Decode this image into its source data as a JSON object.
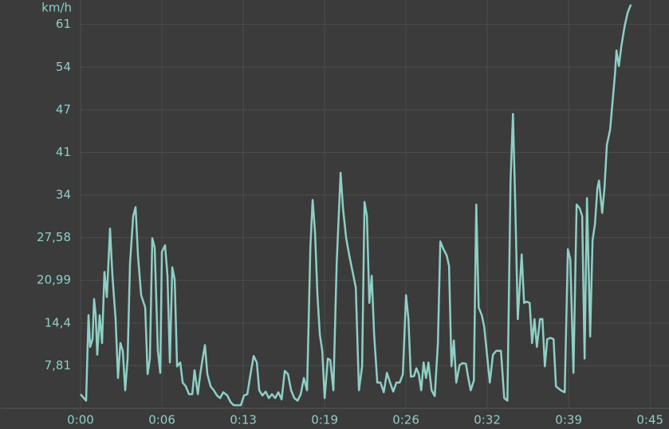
{
  "chart_data": {
    "type": "line",
    "y_unit": "km/h",
    "x": [
      0,
      0.44,
      0.63,
      0.76,
      0.95,
      1.07,
      1.2,
      1.32,
      1.51,
      1.7,
      1.89,
      2.08,
      2.33,
      2.52,
      2.77,
      2.96,
      3.15,
      3.34,
      3.53,
      3.72,
      3.91,
      4.16,
      4.35,
      4.54,
      4.79,
      5.11,
      5.3,
      5.48,
      5.67,
      5.86,
      6.11,
      6.3,
      6.43,
      6.68,
      6.87,
      7.06,
      7.25,
      7.44,
      7.63,
      7.88,
      8.07,
      8.32,
      8.57,
      8.83,
      9.01,
      9.27,
      9.46,
      9.65,
      9.83,
      10.02,
      10.28,
      10.53,
      10.78,
      11.03,
      11.28,
      11.6,
      11.85,
      12.1,
      12.36,
      12.67,
      12.92,
      13.18,
      13.43,
      13.68,
      13.93,
      14.12,
      14.37,
      14.63,
      14.88,
      15.13,
      15.38,
      15.63,
      15.89,
      16.14,
      16.39,
      16.64,
      16.89,
      17.15,
      17.4,
      17.65,
      17.9,
      18.16,
      18.34,
      18.53,
      18.72,
      18.91,
      19.1,
      19.29,
      19.54,
      19.73,
      19.98,
      20.24,
      20.55,
      20.74,
      20.99,
      21.24,
      21.5,
      21.75,
      22,
      22.25,
      22.44,
      22.63,
      22.82,
      23.01,
      23.2,
      23.45,
      23.7,
      23.96,
      24.21,
      24.46,
      24.71,
      24.96,
      25.22,
      25.47,
      25.72,
      25.91,
      26.1,
      26.35,
      26.54,
      26.73,
      26.92,
      27.11,
      27.3,
      27.49,
      27.74,
      27.99,
      28.24,
      28.43,
      28.68,
      28.94,
      29.12,
      29.31,
      29.5,
      29.69,
      29.95,
      30.2,
      30.45,
      30.64,
      30.83,
      31.08,
      31.27,
      31.46,
      31.71,
      31.9,
      32.09,
      32.34,
      32.59,
      32.85,
      33.22,
      33.48,
      33.73,
      33.98,
      34.17,
      34.36,
      34.55,
      34.74,
      34.86,
      35.05,
      35.24,
      35.49,
      35.68,
      35.87,
      36.06,
      36.31,
      36.5,
      36.69,
      36.88,
      37.13,
      37.38,
      37.57,
      37.95,
      38.26,
      38.51,
      38.7,
      38.95,
      39.2,
      39.45,
      39.64,
      39.83,
      40.02,
      40.27,
      40.46,
      40.65,
      40.84,
      40.97,
      41.22,
      41.4,
      41.59,
      41.85,
      42.04,
      42.23,
      42.35,
      42.54,
      42.73,
      42.99,
      43.24,
      43.49
    ],
    "series": [
      {
        "color": "#8ecfc5",
        "values": [
          3.4,
          2.4,
          15.6,
          10.7,
          11.9,
          18.1,
          15.6,
          9.5,
          15.6,
          11.3,
          22.3,
          18.4,
          29.0,
          21.7,
          15.0,
          5.9,
          11.3,
          10.1,
          4.0,
          8.9,
          23.6,
          30.9,
          32.3,
          24.8,
          18.7,
          16.8,
          6.5,
          8.9,
          27.5,
          26.0,
          10.1,
          6.7,
          25.4,
          26.4,
          21.7,
          8.3,
          23.0,
          21.1,
          7.7,
          8.3,
          5.2,
          4.6,
          3.4,
          3.4,
          7.1,
          3.4,
          6.5,
          8.9,
          11.0,
          6.5,
          4.6,
          4.0,
          3.2,
          2.8,
          3.7,
          3.2,
          2.2,
          1.7,
          1.7,
          1.7,
          3.2,
          3.4,
          6.5,
          9.3,
          8.3,
          4.0,
          3.2,
          3.8,
          2.8,
          3.4,
          2.8,
          3.7,
          2.6,
          7.0,
          6.5,
          4.0,
          2.8,
          2.4,
          3.4,
          5.9,
          4.0,
          26.0,
          33.4,
          28.4,
          18.7,
          12.6,
          10.1,
          2.8,
          8.9,
          8.7,
          4.0,
          23.6,
          37.6,
          32.1,
          27.5,
          24.8,
          22.3,
          19.9,
          4.0,
          7.7,
          33.1,
          30.9,
          17.5,
          21.7,
          12.6,
          5.2,
          5.2,
          3.7,
          6.7,
          5.2,
          3.8,
          5.2,
          5.2,
          6.5,
          18.7,
          15.0,
          6.1,
          6.2,
          7.4,
          6.5,
          4.0,
          8.3,
          5.9,
          8.3,
          4.0,
          3.1,
          11.3,
          27.0,
          25.8,
          24.8,
          23.2,
          7.7,
          11.7,
          5.2,
          7.9,
          8.2,
          8.1,
          5.9,
          4.0,
          5.5,
          32.7,
          16.8,
          15.6,
          13.8,
          10.1,
          5.2,
          9.5,
          10.1,
          10.1,
          2.8,
          2.4,
          36.4,
          46.7,
          32.1,
          15.0,
          21.1,
          25.0,
          17.5,
          17.7,
          17.5,
          11.3,
          15.0,
          10.7,
          15.0,
          15.0,
          7.7,
          11.9,
          12.1,
          11.9,
          4.6,
          4.0,
          3.7,
          25.8,
          24.2,
          6.7,
          32.7,
          32.1,
          30.9,
          8.9,
          33.7,
          12.3,
          27.2,
          29.7,
          35.2,
          36.4,
          31.4,
          35.2,
          41.9,
          44.3,
          48.6,
          52.8,
          56.5,
          54.1,
          57.1,
          60.2,
          62.4,
          63.6
        ]
      }
    ],
    "xlim": [
      0,
      46.5
    ],
    "xticks": [
      {
        "value": 0,
        "label": "0:00"
      },
      {
        "value": 6.43,
        "label": "0:06"
      },
      {
        "value": 12.86,
        "label": "0:13"
      },
      {
        "value": 19.29,
        "label": "0:19"
      },
      {
        "value": 25.71,
        "label": "0:26"
      },
      {
        "value": 32.14,
        "label": "0:32"
      },
      {
        "value": 38.57,
        "label": "0:39"
      },
      {
        "value": 45,
        "label": "0:45"
      }
    ],
    "ylim": [
      1.22,
      64.3
    ],
    "yticks": [
      {
        "value": 7.81,
        "label": "7,81"
      },
      {
        "value": 14.4,
        "label": "14,4"
      },
      {
        "value": 20.99,
        "label": "20,99"
      },
      {
        "value": 27.58,
        "label": "27,58"
      },
      {
        "value": 34.17,
        "label": "34"
      },
      {
        "value": 40.76,
        "label": "41"
      },
      {
        "value": 47.35,
        "label": "47"
      },
      {
        "value": 53.94,
        "label": "54"
      },
      {
        "value": 60.53,
        "label": "61"
      }
    ],
    "grid": true
  }
}
